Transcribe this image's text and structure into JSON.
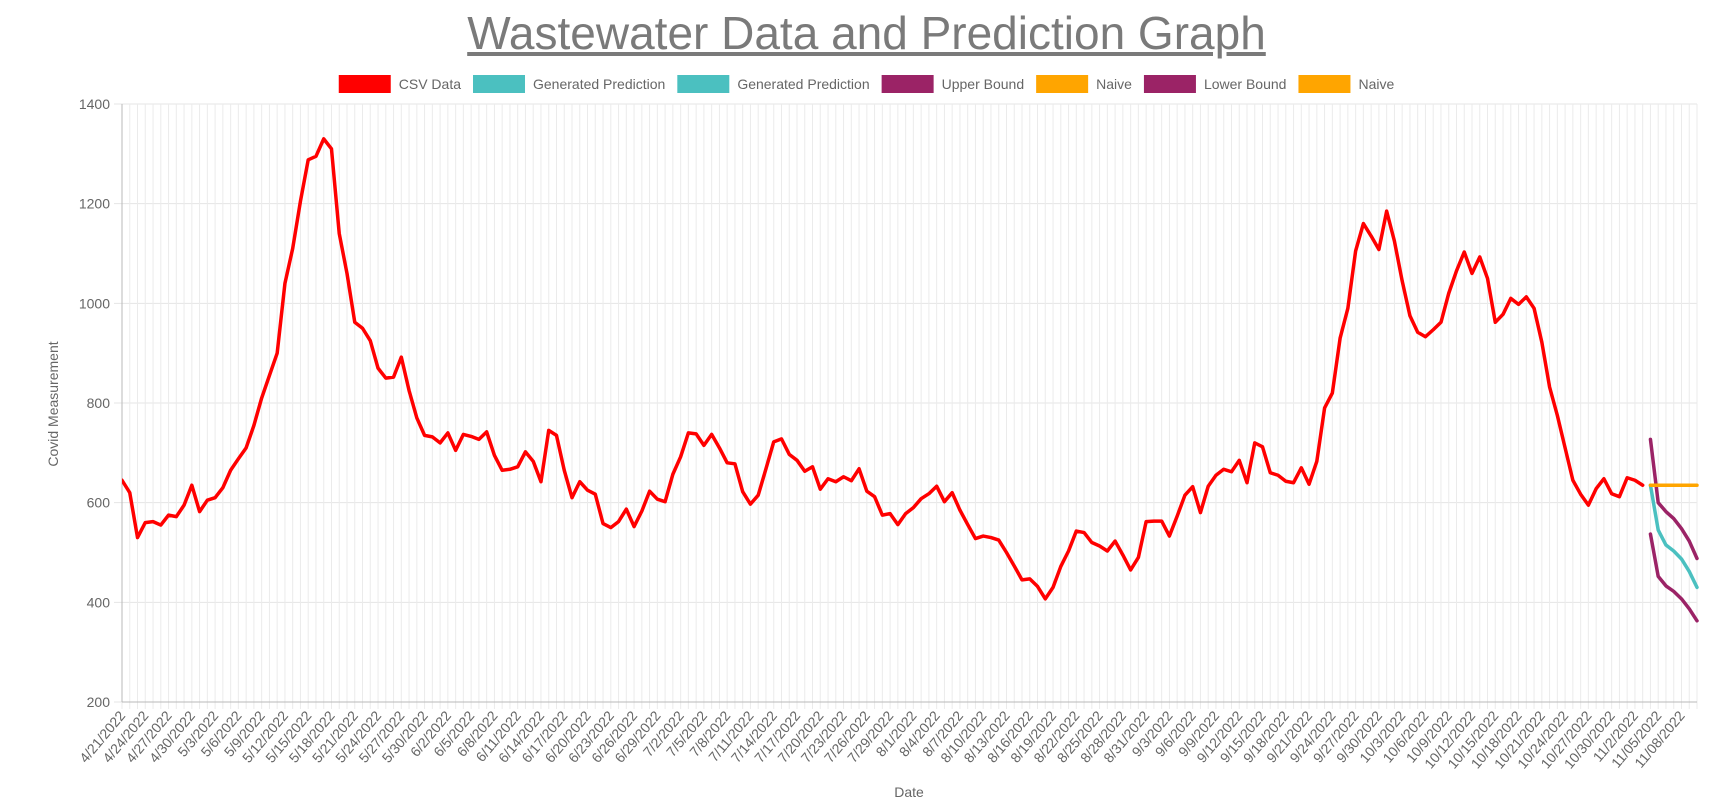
{
  "page": {
    "title": "Wastewater Data and Prediction Graph"
  },
  "chart_data": {
    "type": "line",
    "title": "Wastewater Data and Prediction Graph",
    "xlabel": "Date",
    "ylabel": "Covid Measurement",
    "ylim": [
      200,
      1400
    ],
    "yticks": [
      200,
      400,
      600,
      800,
      1000,
      1200,
      1400
    ],
    "grid": true,
    "legend_position": "top",
    "x_start": "2022-04-21",
    "x_end": "2022-11-10",
    "x_tick_step_days": 3,
    "xtick_labels": [
      "4/21/2022",
      "4/24/2022",
      "4/27/2022",
      "4/30/2022",
      "5/3/2022",
      "5/6/2022",
      "5/9/2022",
      "5/12/2022",
      "5/15/2022",
      "5/18/2022",
      "5/21/2022",
      "5/24/2022",
      "5/27/2022",
      "5/30/2022",
      "6/2/2022",
      "6/5/2022",
      "6/8/2022",
      "6/11/2022",
      "6/14/2022",
      "6/17/2022",
      "6/20/2022",
      "6/23/2022",
      "6/26/2022",
      "6/29/2022",
      "7/2/2022",
      "7/5/2022",
      "7/8/2022",
      "7/11/2022",
      "7/14/2022",
      "7/17/2022",
      "7/20/2022",
      "7/23/2022",
      "7/26/2022",
      "7/29/2022",
      "8/1/2022",
      "8/4/2022",
      "8/7/2022",
      "8/10/2022",
      "8/13/2022",
      "8/16/2022",
      "8/19/2022",
      "8/22/2022",
      "8/25/2022",
      "8/28/2022",
      "8/31/2022",
      "9/3/2022",
      "9/6/2022",
      "9/9/2022",
      "9/12/2022",
      "9/15/2022",
      "9/18/2022",
      "9/21/2022",
      "9/24/2022",
      "9/27/2022",
      "9/30/2022",
      "10/3/2022",
      "10/6/2022",
      "10/9/2022",
      "10/12/2022",
      "10/15/2022",
      "10/18/2022",
      "10/21/2022",
      "10/24/2022",
      "10/27/2022",
      "10/30/2022",
      "11/2/2022",
      "11/05/2022",
      "11/08/2022"
    ],
    "legend": [
      {
        "label": "CSV Data",
        "color": "#ff0000"
      },
      {
        "label": "Generated Prediction",
        "color": "#4bc0c0"
      },
      {
        "label": "Generated Prediction",
        "color": "#4bc0c0"
      },
      {
        "label": "Upper Bound",
        "color": "#9b2366"
      },
      {
        "label": "Naive",
        "color": "#ffa500"
      },
      {
        "label": "Lower Bound",
        "color": "#9b2366"
      },
      {
        "label": "Naive",
        "color": "#ffa500"
      }
    ],
    "series": [
      {
        "name": "CSV Data",
        "color": "#ff0000",
        "points": [
          [
            "2022-04-21",
            645
          ],
          [
            "2022-04-22",
            620
          ],
          [
            "2022-04-23",
            530
          ],
          [
            "2022-04-24",
            560
          ],
          [
            "2022-04-25",
            562
          ],
          [
            "2022-04-26",
            555
          ],
          [
            "2022-04-27",
            575
          ],
          [
            "2022-04-28",
            572
          ],
          [
            "2022-04-29",
            595
          ],
          [
            "2022-04-30",
            635
          ],
          [
            "2022-05-01",
            582
          ],
          [
            "2022-05-02",
            605
          ],
          [
            "2022-05-03",
            610
          ],
          [
            "2022-05-04",
            630
          ],
          [
            "2022-05-05",
            665
          ],
          [
            "2022-05-06",
            688
          ],
          [
            "2022-05-07",
            710
          ],
          [
            "2022-05-08",
            755
          ],
          [
            "2022-05-09",
            810
          ],
          [
            "2022-05-10",
            855
          ],
          [
            "2022-05-11",
            900
          ],
          [
            "2022-05-12",
            1040
          ],
          [
            "2022-05-13",
            1110
          ],
          [
            "2022-05-14",
            1205
          ],
          [
            "2022-05-15",
            1288
          ],
          [
            "2022-05-16",
            1295
          ],
          [
            "2022-05-17",
            1330
          ],
          [
            "2022-05-18",
            1310
          ],
          [
            "2022-05-19",
            1140
          ],
          [
            "2022-05-20",
            1060
          ],
          [
            "2022-05-21",
            962
          ],
          [
            "2022-05-22",
            950
          ],
          [
            "2022-05-23",
            925
          ],
          [
            "2022-05-24",
            870
          ],
          [
            "2022-05-25",
            850
          ],
          [
            "2022-05-26",
            852
          ],
          [
            "2022-05-27",
            892
          ],
          [
            "2022-05-28",
            825
          ],
          [
            "2022-05-29",
            770
          ],
          [
            "2022-05-30",
            735
          ],
          [
            "2022-05-31",
            732
          ],
          [
            "2022-06-01",
            720
          ],
          [
            "2022-06-02",
            740
          ],
          [
            "2022-06-03",
            705
          ],
          [
            "2022-06-04",
            737
          ],
          [
            "2022-06-05",
            733
          ],
          [
            "2022-06-06",
            727
          ],
          [
            "2022-06-07",
            742
          ],
          [
            "2022-06-08",
            695
          ],
          [
            "2022-06-09",
            665
          ],
          [
            "2022-06-10",
            667
          ],
          [
            "2022-06-11",
            672
          ],
          [
            "2022-06-12",
            702
          ],
          [
            "2022-06-13",
            683
          ],
          [
            "2022-06-14",
            642
          ],
          [
            "2022-06-15",
            745
          ],
          [
            "2022-06-16",
            735
          ],
          [
            "2022-06-17",
            665
          ],
          [
            "2022-06-18",
            610
          ],
          [
            "2022-06-19",
            642
          ],
          [
            "2022-06-20",
            625
          ],
          [
            "2022-06-21",
            617
          ],
          [
            "2022-06-22",
            558
          ],
          [
            "2022-06-23",
            550
          ],
          [
            "2022-06-24",
            562
          ],
          [
            "2022-06-25",
            587
          ],
          [
            "2022-06-26",
            552
          ],
          [
            "2022-06-27",
            583
          ],
          [
            "2022-06-28",
            623
          ],
          [
            "2022-06-29",
            607
          ],
          [
            "2022-06-30",
            602
          ],
          [
            "2022-07-01",
            657
          ],
          [
            "2022-07-02",
            692
          ],
          [
            "2022-07-03",
            740
          ],
          [
            "2022-07-04",
            738
          ],
          [
            "2022-07-05",
            715
          ],
          [
            "2022-07-06",
            737
          ],
          [
            "2022-07-07",
            710
          ],
          [
            "2022-07-08",
            680
          ],
          [
            "2022-07-09",
            678
          ],
          [
            "2022-07-10",
            622
          ],
          [
            "2022-07-11",
            597
          ],
          [
            "2022-07-12",
            615
          ],
          [
            "2022-07-13",
            668
          ],
          [
            "2022-07-14",
            722
          ],
          [
            "2022-07-15",
            728
          ],
          [
            "2022-07-16",
            697
          ],
          [
            "2022-07-17",
            685
          ],
          [
            "2022-07-18",
            663
          ],
          [
            "2022-07-19",
            672
          ],
          [
            "2022-07-20",
            627
          ],
          [
            "2022-07-21",
            648
          ],
          [
            "2022-07-22",
            642
          ],
          [
            "2022-07-23",
            652
          ],
          [
            "2022-07-24",
            644
          ],
          [
            "2022-07-25",
            668
          ],
          [
            "2022-07-26",
            623
          ],
          [
            "2022-07-27",
            612
          ],
          [
            "2022-07-28",
            575
          ],
          [
            "2022-07-29",
            578
          ],
          [
            "2022-07-30",
            556
          ],
          [
            "2022-07-31",
            578
          ],
          [
            "2022-08-01",
            590
          ],
          [
            "2022-08-02",
            608
          ],
          [
            "2022-08-03",
            618
          ],
          [
            "2022-08-04",
            633
          ],
          [
            "2022-08-05",
            602
          ],
          [
            "2022-08-06",
            620
          ],
          [
            "2022-08-07",
            585
          ],
          [
            "2022-08-08",
            556
          ],
          [
            "2022-08-09",
            528
          ],
          [
            "2022-08-10",
            533
          ],
          [
            "2022-08-11",
            530
          ],
          [
            "2022-08-12",
            525
          ],
          [
            "2022-08-13",
            500
          ],
          [
            "2022-08-14",
            473
          ],
          [
            "2022-08-15",
            445
          ],
          [
            "2022-08-16",
            447
          ],
          [
            "2022-08-17",
            432
          ],
          [
            "2022-08-18",
            407
          ],
          [
            "2022-08-19",
            430
          ],
          [
            "2022-08-20",
            472
          ],
          [
            "2022-08-21",
            503
          ],
          [
            "2022-08-22",
            543
          ],
          [
            "2022-08-23",
            540
          ],
          [
            "2022-08-24",
            520
          ],
          [
            "2022-08-25",
            513
          ],
          [
            "2022-08-26",
            503
          ],
          [
            "2022-08-27",
            523
          ],
          [
            "2022-08-28",
            495
          ],
          [
            "2022-08-29",
            465
          ],
          [
            "2022-08-30",
            490
          ],
          [
            "2022-08-31",
            562
          ],
          [
            "2022-09-01",
            563
          ],
          [
            "2022-09-02",
            563
          ],
          [
            "2022-09-03",
            533
          ],
          [
            "2022-09-04",
            573
          ],
          [
            "2022-09-05",
            615
          ],
          [
            "2022-09-06",
            632
          ],
          [
            "2022-09-07",
            580
          ],
          [
            "2022-09-08",
            633
          ],
          [
            "2022-09-09",
            655
          ],
          [
            "2022-09-10",
            667
          ],
          [
            "2022-09-11",
            662
          ],
          [
            "2022-09-12",
            685
          ],
          [
            "2022-09-13",
            640
          ],
          [
            "2022-09-14",
            720
          ],
          [
            "2022-09-15",
            712
          ],
          [
            "2022-09-16",
            660
          ],
          [
            "2022-09-17",
            655
          ],
          [
            "2022-09-18",
            643
          ],
          [
            "2022-09-19",
            640
          ],
          [
            "2022-09-20",
            670
          ],
          [
            "2022-09-21",
            637
          ],
          [
            "2022-09-22",
            683
          ],
          [
            "2022-09-23",
            790
          ],
          [
            "2022-09-24",
            820
          ],
          [
            "2022-09-25",
            930
          ],
          [
            "2022-09-26",
            990
          ],
          [
            "2022-09-27",
            1105
          ],
          [
            "2022-09-28",
            1160
          ],
          [
            "2022-09-29",
            1135
          ],
          [
            "2022-09-30",
            1108
          ],
          [
            "2022-10-01",
            1185
          ],
          [
            "2022-10-02",
            1125
          ],
          [
            "2022-10-03",
            1045
          ],
          [
            "2022-10-04",
            975
          ],
          [
            "2022-10-05",
            942
          ],
          [
            "2022-10-06",
            933
          ],
          [
            "2022-10-07",
            947
          ],
          [
            "2022-10-08",
            962
          ],
          [
            "2022-10-09",
            1020
          ],
          [
            "2022-10-10",
            1065
          ],
          [
            "2022-10-11",
            1103
          ],
          [
            "2022-10-12",
            1060
          ],
          [
            "2022-10-13",
            1093
          ],
          [
            "2022-10-14",
            1050
          ],
          [
            "2022-10-15",
            962
          ],
          [
            "2022-10-16",
            978
          ],
          [
            "2022-10-17",
            1010
          ],
          [
            "2022-10-18",
            998
          ],
          [
            "2022-10-19",
            1013
          ],
          [
            "2022-10-20",
            990
          ],
          [
            "2022-10-21",
            922
          ],
          [
            "2022-10-22",
            832
          ],
          [
            "2022-10-23",
            775
          ],
          [
            "2022-10-24",
            710
          ],
          [
            "2022-10-25",
            645
          ],
          [
            "2022-10-26",
            617
          ],
          [
            "2022-10-27",
            595
          ],
          [
            "2022-10-28",
            628
          ],
          [
            "2022-10-29",
            648
          ],
          [
            "2022-10-30",
            618
          ],
          [
            "2022-10-31",
            612
          ],
          [
            "2022-11-01",
            650
          ],
          [
            "2022-11-02",
            645
          ],
          [
            "2022-11-03",
            635
          ]
        ]
      },
      {
        "name": "Generated Prediction",
        "color": "#4bc0c0",
        "points": [
          [
            "2022-11-04",
            635
          ],
          [
            "2022-11-05",
            545
          ],
          [
            "2022-11-06",
            515
          ],
          [
            "2022-11-07",
            503
          ],
          [
            "2022-11-08",
            487
          ],
          [
            "2022-11-09",
            462
          ],
          [
            "2022-11-10",
            430
          ]
        ]
      },
      {
        "name": "Upper Bound",
        "color": "#9b2366",
        "points": [
          [
            "2022-11-04",
            727
          ],
          [
            "2022-11-05",
            600
          ],
          [
            "2022-11-06",
            582
          ],
          [
            "2022-11-07",
            568
          ],
          [
            "2022-11-08",
            548
          ],
          [
            "2022-11-09",
            523
          ],
          [
            "2022-11-10",
            488
          ]
        ]
      },
      {
        "name": "Lower Bound",
        "color": "#9b2366",
        "points": [
          [
            "2022-11-04",
            537
          ],
          [
            "2022-11-05",
            452
          ],
          [
            "2022-11-06",
            433
          ],
          [
            "2022-11-07",
            422
          ],
          [
            "2022-11-08",
            407
          ],
          [
            "2022-11-09",
            387
          ],
          [
            "2022-11-10",
            363
          ]
        ]
      },
      {
        "name": "Naive",
        "color": "#ffa500",
        "points": [
          [
            "2022-11-04",
            635
          ],
          [
            "2022-11-05",
            635
          ],
          [
            "2022-11-06",
            635
          ],
          [
            "2022-11-07",
            635
          ],
          [
            "2022-11-08",
            635
          ],
          [
            "2022-11-09",
            635
          ],
          [
            "2022-11-10",
            635
          ]
        ]
      }
    ]
  }
}
